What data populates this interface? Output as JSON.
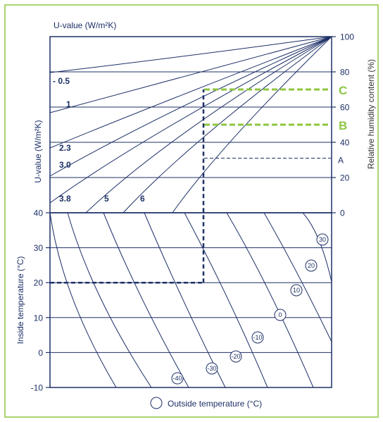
{
  "chart_data": {
    "type": "line",
    "title": "",
    "colors": {
      "frame": "#8dc63f",
      "navy": "#1d3067",
      "guide": "#8dc63f"
    },
    "upper_panel": {
      "axis_top_label": "U-value (W/m²K)",
      "axis_left_label": "U-value (W/m²K)",
      "axis_right_label": "Relative humidity content (%)",
      "rh_ticks": [
        "100",
        "80",
        "60",
        "40",
        "20",
        "0"
      ],
      "rh_range": [
        0,
        100
      ],
      "u_value_curves": [
        "- 0.5",
        "1",
        "2.3",
        "3.0",
        "3.8",
        "5",
        "6"
      ],
      "levels": [
        {
          "label": "C",
          "rh": 70
        },
        {
          "label": "B",
          "rh": 50
        },
        {
          "label": "A",
          "rh": 31
        }
      ]
    },
    "lower_panel": {
      "axis_left_label": "Inside temperature (°C)",
      "inside_ticks": [
        "40",
        "30",
        "20",
        "10",
        "0",
        "-10"
      ],
      "inside_range": [
        -10,
        40
      ],
      "outside_temperature_curves": [
        "30",
        "20",
        "10",
        "0",
        "-10",
        "-20",
        "-30",
        "-40"
      ],
      "legend_label": "Outside temperature (°C)"
    },
    "example": {
      "inside_temperature": 20,
      "rh_result": 70
    }
  }
}
